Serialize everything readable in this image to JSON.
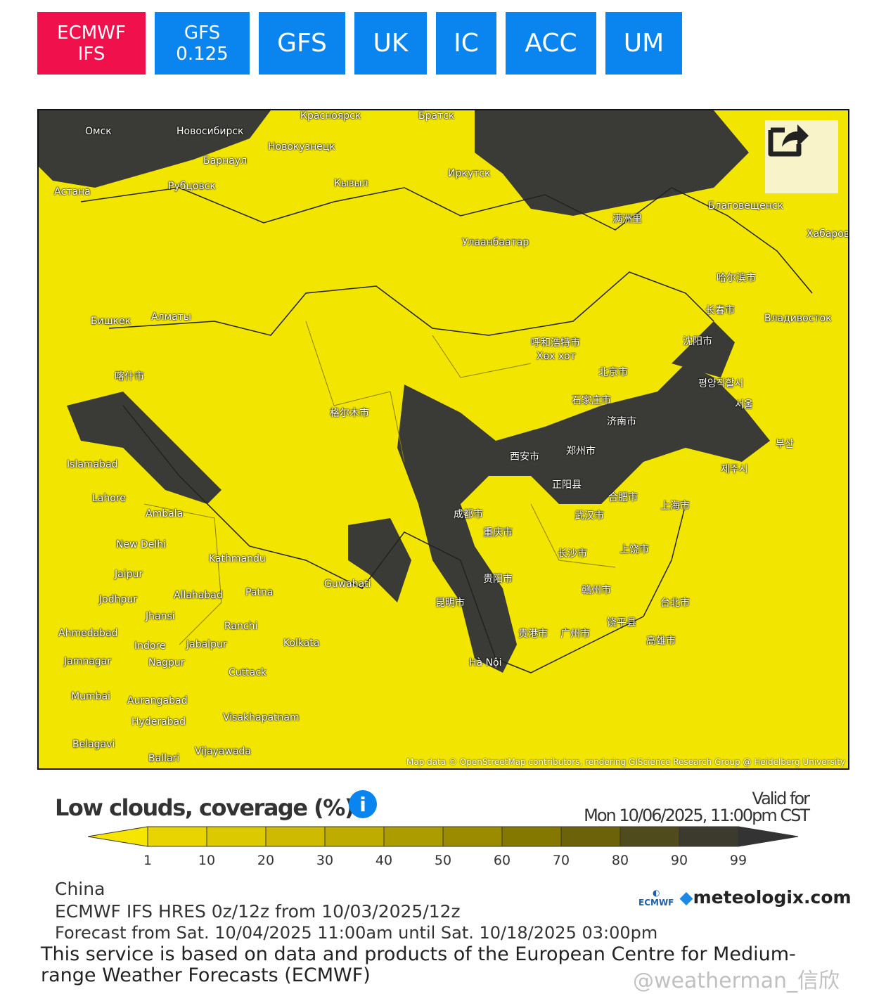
{
  "tabs": [
    {
      "label": "ECMWF IFS",
      "active": true
    },
    {
      "label": "GFS 0.125"
    },
    {
      "label": "GFS"
    },
    {
      "label": "UK"
    },
    {
      "label": "IC"
    },
    {
      "label": "ACC"
    },
    {
      "label": "UM"
    }
  ],
  "map": {
    "attribution": "Map data © OpenStreetMap contributors, rendering GIScience Research Group @ Heidelberg University",
    "share_icon": "share-icon",
    "cities": [
      "Омск",
      "Новосибирск",
      "Красноярск",
      "Братск",
      "Барнаул",
      "Новокузнецк",
      "Астана",
      "Рубцовск",
      "Кызыл",
      "Иркутск",
      "Улаанбаатар",
      "Благовещенск",
      "Хабаровск",
      "满洲里",
      "哈尔滨市",
      "长春市",
      "Владивосток",
      "Бишкек",
      "Алматы",
      "呼和浩特市",
      "Хөх хот",
      "沈阳市",
      "北京市",
      "평양직할시",
      "石家庄市",
      "서울",
      "济南市",
      "喀什市",
      "格尔木市",
      "西安市",
      "郑州市",
      "부산",
      "제주시",
      "Islamabad",
      "正阳县",
      "合肥市",
      "上海市",
      "Lahore",
      "成都市",
      "武汉市",
      "Ambala",
      "重庆市",
      "New Delhi",
      "长沙市",
      "上饶市",
      "Kathmandu",
      "Jaipur",
      "Guwahati",
      "贵阳市",
      "赣州市",
      "台北市",
      "Jodhpur",
      "Allahabad",
      "Patna",
      "昆明市",
      "Jhansi",
      "Ranchi",
      "贵港市",
      "广州市",
      "饶平县",
      "Ahmedabad",
      "Indore",
      "Jabalpur",
      "Kolkata",
      "高雄市",
      "Jamnagar",
      "Nagpur",
      "Hà Nội",
      "Cuttack",
      "Mumbai",
      "Aurangabad",
      "Hyderabad",
      "Visakhapatnam",
      "Belagavi",
      "Vijayawada",
      "Ballari"
    ]
  },
  "legend": {
    "title": "Low clouds, coverage (%)",
    "info_icon": "info-icon",
    "valid_label": "Valid for",
    "valid_time": "Mon 10/06/2025, 11:00pm CST",
    "ticks": [
      "1",
      "10",
      "20",
      "30",
      "40",
      "50",
      "60",
      "70",
      "80",
      "90",
      "99"
    ],
    "colors": [
      "#f5e500",
      "#e8d400",
      "#dcc900",
      "#ceba00",
      "#bfac00",
      "#ad9c00",
      "#9a8b00",
      "#857800",
      "#6b6209",
      "#504b1c",
      "#3b3a2c",
      "#333333"
    ]
  },
  "footer": {
    "region": "China",
    "model": "ECMWF IFS HRES 0z/12z from 10/03/2025/12z",
    "forecast": "Forecast from Sat. 10/04/2025 11:00am until Sat. 10/18/2025 03:00pm",
    "disclaimer1": "This service is based on data and products of the European Centre for Medium-",
    "disclaimer2": "range Weather Forecasts (ECMWF)",
    "ecmwf_logo": "ECMWF",
    "brand": "meteologix.com",
    "watermark": "@weatherman_信欣"
  }
}
